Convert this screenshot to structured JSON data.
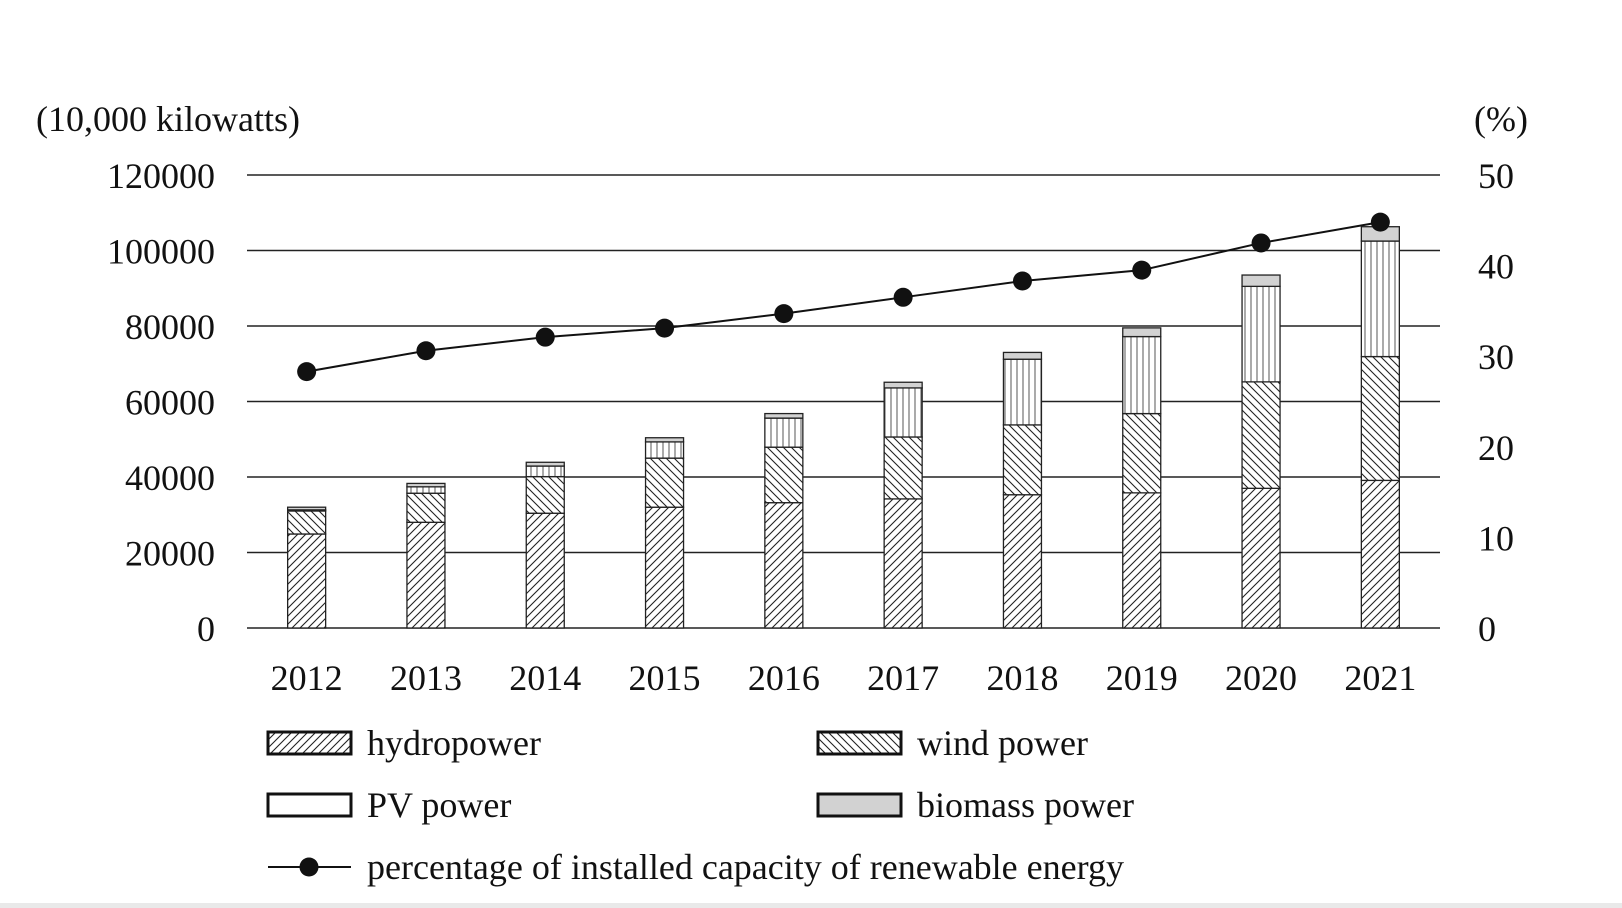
{
  "chart_data": {
    "type": "bar",
    "stacked": true,
    "categories": [
      "2012",
      "2013",
      "2014",
      "2015",
      "2016",
      "2017",
      "2018",
      "2019",
      "2020",
      "2021"
    ],
    "series": [
      {
        "name": "hydropower",
        "pattern": "hatch-forward",
        "values": [
          24900,
          28000,
          30400,
          32000,
          33200,
          34200,
          35300,
          35800,
          37000,
          39100
        ]
      },
      {
        "name": "wind power",
        "pattern": "hatch-back",
        "values": [
          6100,
          7700,
          9700,
          13000,
          14700,
          16400,
          18500,
          21000,
          28200,
          32800
        ]
      },
      {
        "name": "PV power",
        "pattern": "vertical-lines",
        "values": [
          300,
          1700,
          2800,
          4300,
          7700,
          13000,
          17400,
          20400,
          25300,
          30600
        ]
      },
      {
        "name": "biomass power",
        "pattern": "gray-fill",
        "values": [
          700,
          900,
          1000,
          1100,
          1200,
          1500,
          1800,
          2300,
          3000,
          3800
        ]
      }
    ],
    "line_series": {
      "name": "percentage of installed capacity of renewable energy",
      "axis": "right",
      "values": [
        28.3,
        30.6,
        32.1,
        33.1,
        34.7,
        36.5,
        38.3,
        39.5,
        42.5,
        44.8
      ]
    },
    "left_axis": {
      "label": "(10,000 kilowatts)",
      "min": 0,
      "max": 120000,
      "ticks": [
        "0",
        "20000",
        "40000",
        "60000",
        "80000",
        "100000",
        "120000"
      ]
    },
    "right_axis": {
      "label": "(%)",
      "min": 0,
      "max": 50,
      "ticks": [
        "0",
        "10",
        "20",
        "30",
        "40",
        "50"
      ]
    },
    "grid": true,
    "legend": [
      {
        "label": "hydropower",
        "kind": "box",
        "pattern": "hatch-forward"
      },
      {
        "label": "wind power",
        "kind": "box",
        "pattern": "hatch-back"
      },
      {
        "label": "PV power",
        "kind": "box",
        "pattern": "plain-white"
      },
      {
        "label": "biomass power",
        "kind": "box",
        "pattern": "gray-fill"
      },
      {
        "label": "percentage of installed capacity of renewable energy",
        "kind": "line-marker"
      }
    ],
    "legend_position": "bottom"
  }
}
